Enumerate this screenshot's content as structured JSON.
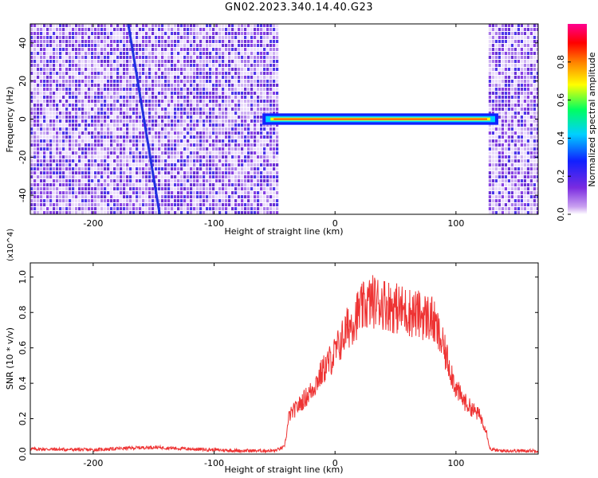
{
  "title": "GN02.2023.340.14.40.G23",
  "chart_data": [
    {
      "type": "heatmap",
      "xlabel": "Height of straight line (km)",
      "ylabel": "Frequency (Hz)",
      "xlim": [
        -252,
        168
      ],
      "ylim": [
        -50,
        50
      ],
      "x_ticks": [
        -200,
        -100,
        0,
        100
      ],
      "y_ticks": [
        -40,
        -20,
        0,
        20,
        40
      ],
      "colorbar": {
        "label": "Normalized spectral amplitude",
        "range": [
          0.0,
          1.0
        ],
        "ticks": [
          "0.0",
          "0.2",
          "0.4",
          "0.6",
          "0.8"
        ],
        "colormap": [
          "#ffffff",
          "#c9a0f0",
          "#7a2be0",
          "#1020ff",
          "#00d0ff",
          "#00ff60",
          "#ffff00",
          "#ff8000",
          "#ff0000",
          "#ff0090"
        ]
      },
      "noise_region_left": [
        -252,
        -47
      ],
      "noise_region_right": [
        127,
        168
      ],
      "carrier_line": {
        "freq": 0,
        "x_range": [
          -60,
          135
        ]
      },
      "drifting_line": [
        {
          "x": -171,
          "freq": 50
        },
        {
          "x": -145,
          "freq": -50
        }
      ]
    },
    {
      "type": "line",
      "xlabel": "Height of straight line (km)",
      "ylabel": "SNR (10 * v/v)",
      "y_multiplier": "(x10^4)",
      "xlim": [
        -252,
        168
      ],
      "ylim": [
        0,
        1.08
      ],
      "x_ticks": [
        -200,
        -100,
        0,
        100
      ],
      "y_ticks": [
        "0.0",
        "0.2",
        "0.4",
        "0.6",
        "0.8",
        "1.0"
      ],
      "series": [
        {
          "color": "#ee3333",
          "points": [
            [
              -252,
              0.03
            ],
            [
              -200,
              0.025
            ],
            [
              -170,
              0.035
            ],
            [
              -150,
              0.04
            ],
            [
              -120,
              0.03
            ],
            [
              -80,
              0.02
            ],
            [
              -50,
              0.02
            ],
            [
              -42,
              0.04
            ],
            [
              -40,
              0.12
            ],
            [
              -38,
              0.22
            ],
            [
              -30,
              0.28
            ],
            [
              -20,
              0.36
            ],
            [
              -10,
              0.48
            ],
            [
              0,
              0.58
            ],
            [
              10,
              0.72
            ],
            [
              20,
              0.82
            ],
            [
              30,
              0.88
            ],
            [
              40,
              0.87
            ],
            [
              50,
              0.84
            ],
            [
              60,
              0.82
            ],
            [
              70,
              0.8
            ],
            [
              80,
              0.78
            ],
            [
              85,
              0.7
            ],
            [
              95,
              0.5
            ],
            [
              100,
              0.38
            ],
            [
              105,
              0.32
            ],
            [
              110,
              0.28
            ],
            [
              120,
              0.22
            ],
            [
              125,
              0.14
            ],
            [
              128,
              0.03
            ],
            [
              135,
              0.02
            ],
            [
              168,
              0.02
            ]
          ]
        }
      ]
    }
  ]
}
